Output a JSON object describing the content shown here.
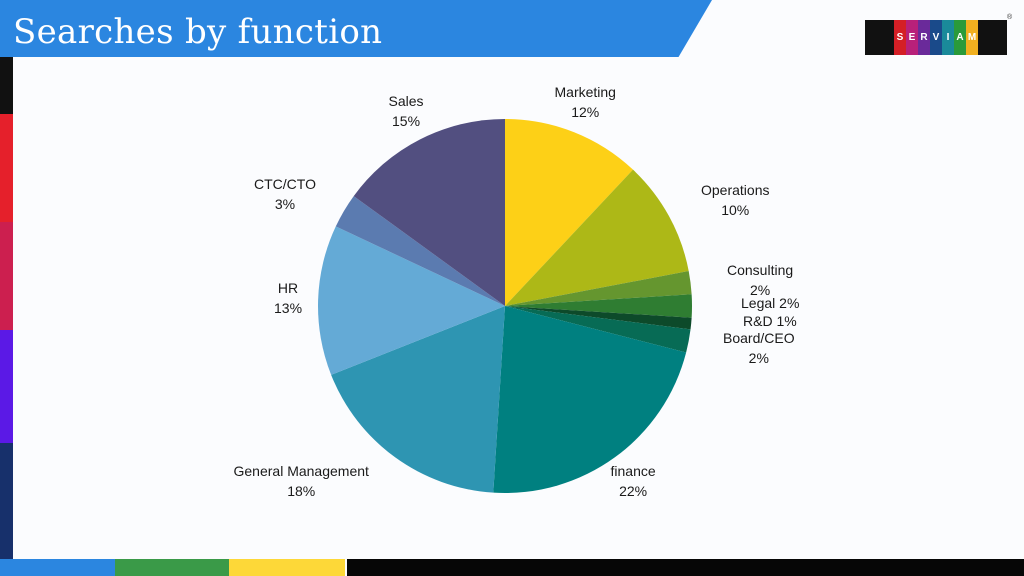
{
  "slide": {
    "title": "Searches by function"
  },
  "logo": {
    "letters": [
      "S",
      "E",
      "R",
      "V",
      "I",
      "A",
      "M"
    ],
    "registered": "®"
  },
  "chart_data": {
    "type": "pie",
    "title": "Searches by function",
    "slices": [
      {
        "label": "Marketing",
        "value": 12,
        "value_label": "12%",
        "color": "#fdd017"
      },
      {
        "label": "Operations",
        "value": 10,
        "value_label": "10%",
        "color": "#adb817"
      },
      {
        "label": "Consulting",
        "value": 2,
        "value_label": "2%",
        "color": "#65962f"
      },
      {
        "label": "Legal",
        "value": 2,
        "value_label": "2%",
        "color": "#2f7d32"
      },
      {
        "label": "R&D",
        "value": 1,
        "value_label": "1%",
        "color": "#0d4a2a"
      },
      {
        "label": "Board/CEO",
        "value": 2,
        "value_label": "2%",
        "color": "#076b55"
      },
      {
        "label": "finance",
        "value": 22,
        "value_label": "22%",
        "color": "#008080"
      },
      {
        "label": "General Management",
        "value": 18,
        "value_label": "18%",
        "color": "#2e95b2"
      },
      {
        "label": "HR",
        "value": 13,
        "value_label": "13%",
        "color": "#64aad6"
      },
      {
        "label": "CTC/CTO",
        "value": 3,
        "value_label": "3%",
        "color": "#5b7bb0"
      },
      {
        "label": "Sales",
        "value": 15,
        "value_label": "15%",
        "color": "#524f80"
      }
    ]
  }
}
